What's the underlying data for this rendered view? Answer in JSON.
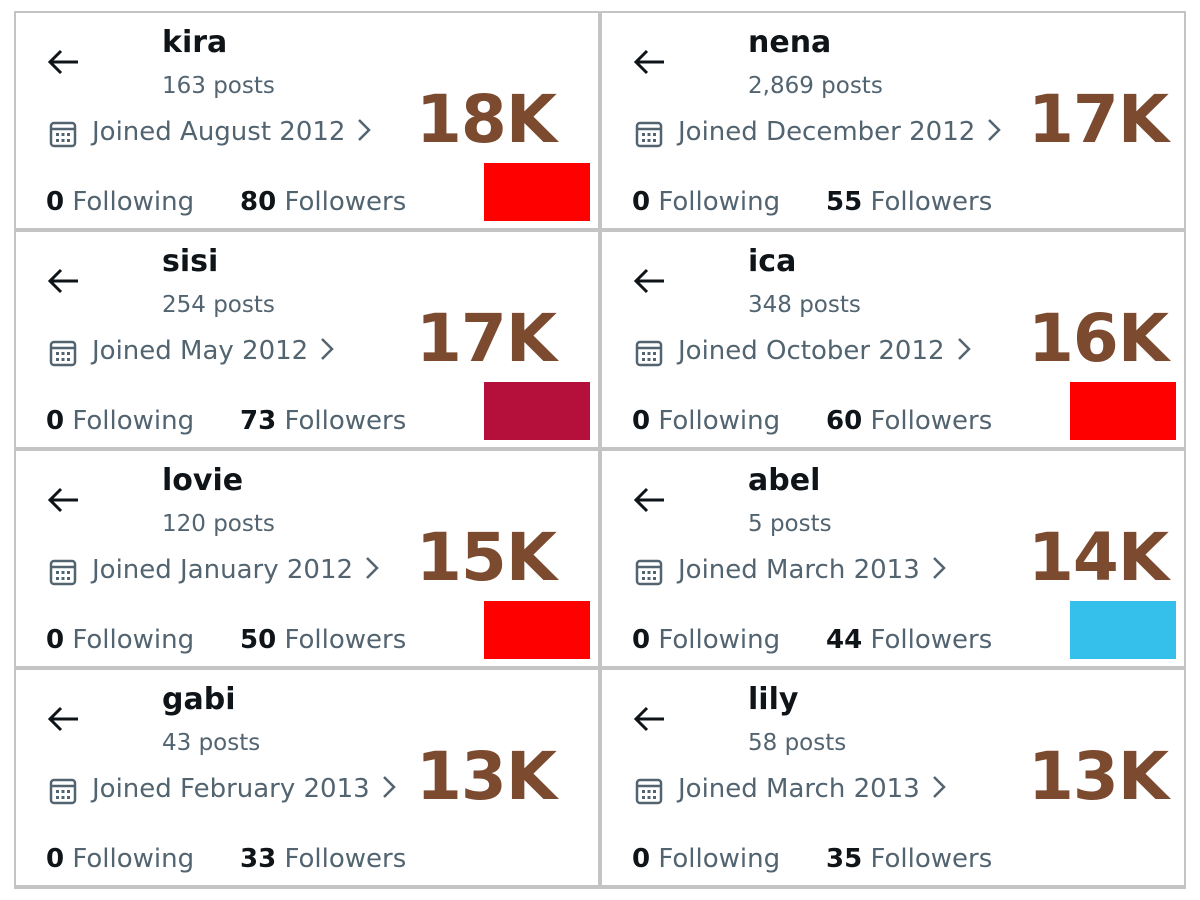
{
  "cards": [
    {
      "name": "kira",
      "posts": "163 posts",
      "joined": "Joined August 2012",
      "following": "0",
      "following_label": "Following",
      "followers": "80",
      "followers_label": "Followers",
      "badge": "18K",
      "swatch": "#ff0000"
    },
    {
      "name": "nena",
      "posts": "2,869 posts",
      "joined": "Joined December 2012",
      "following": "0",
      "following_label": "Following",
      "followers": "55",
      "followers_label": "Followers",
      "badge": "17K"
    },
    {
      "name": "sisi",
      "posts": "254 posts",
      "joined": "Joined May 2012",
      "following": "0",
      "following_label": "Following",
      "followers": "73",
      "followers_label": "Followers",
      "badge": "17K",
      "swatch": "#b5103c"
    },
    {
      "name": "ica",
      "posts": "348 posts",
      "joined": "Joined October 2012",
      "following": "0",
      "following_label": "Following",
      "followers": "60",
      "followers_label": "Followers",
      "badge": "16K",
      "swatch": "#ff0000"
    },
    {
      "name": "lovie",
      "posts": "120 posts",
      "joined": "Joined January 2012",
      "following": "0",
      "following_label": "Following",
      "followers": "50",
      "followers_label": "Followers",
      "badge": "15K",
      "swatch": "#ff0000"
    },
    {
      "name": "abel",
      "posts": "5 posts",
      "joined": "Joined March 2013",
      "following": "0",
      "following_label": "Following",
      "followers": "44",
      "followers_label": "Followers",
      "badge": "14K",
      "swatch": "#35c0ec"
    },
    {
      "name": "gabi",
      "posts": "43 posts",
      "joined": "Joined February 2013",
      "following": "0",
      "following_label": "Following",
      "followers": "33",
      "followers_label": "Followers",
      "badge": "13K"
    },
    {
      "name": "lily",
      "posts": "58 posts",
      "joined": "Joined March 2013",
      "following": "0",
      "following_label": "Following",
      "followers": "35",
      "followers_label": "Followers",
      "badge": "13K"
    }
  ]
}
